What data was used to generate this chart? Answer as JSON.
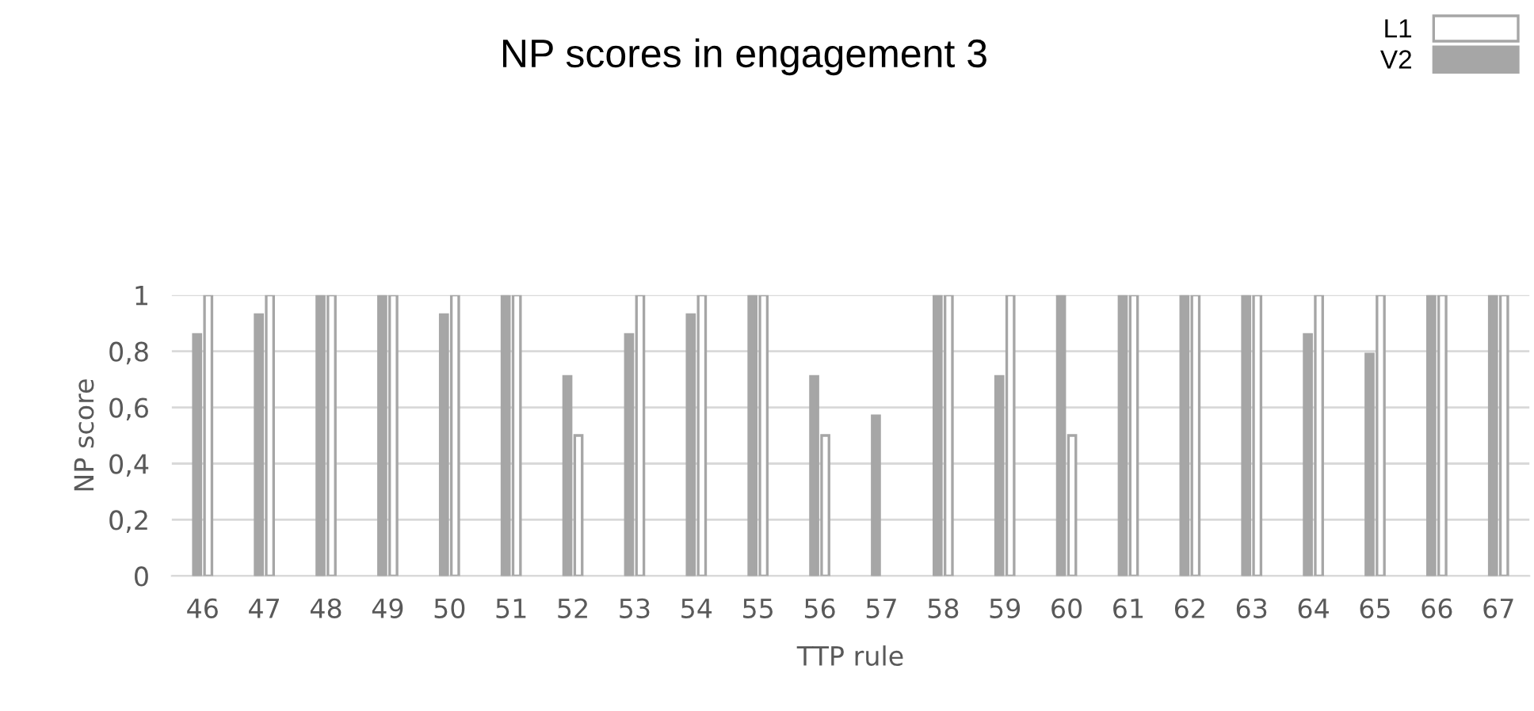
{
  "chart_data": {
    "type": "bar",
    "title": "NP scores in engagement 3",
    "xlabel": "TTP rule",
    "ylabel": "NP score",
    "categories": [
      "46",
      "47",
      "48",
      "49",
      "50",
      "51",
      "52",
      "53",
      "54",
      "55",
      "56",
      "57",
      "58",
      "59",
      "60",
      "61",
      "62",
      "63",
      "64",
      "65",
      "66",
      "67"
    ],
    "series": [
      {
        "name": "V2",
        "color": "#a6a6a6",
        "values": [
          0.86,
          0.93,
          1,
          1,
          0.93,
          1,
          0.71,
          0.86,
          0.93,
          1,
          0.71,
          0.57,
          1,
          0.71,
          1,
          1,
          1,
          1,
          0.86,
          0.79,
          1,
          1
        ]
      },
      {
        "name": "L1",
        "color": "#ffffff",
        "values": [
          1,
          1,
          1,
          1,
          1,
          1,
          0.5,
          1,
          1,
          1,
          0.5,
          0,
          1,
          1,
          0.5,
          1,
          1,
          1,
          1,
          1,
          1,
          1
        ]
      }
    ],
    "ylim": [
      0,
      1
    ],
    "yticks": [
      0,
      {
        "value": 0.2,
        "label": "0,2"
      },
      {
        "value": 0.4,
        "label": "0,4"
      },
      {
        "value": 0.6,
        "label": "0,6"
      },
      {
        "value": 0.8,
        "label": "0,8"
      },
      1
    ],
    "grid": "y",
    "legend": "top right"
  }
}
